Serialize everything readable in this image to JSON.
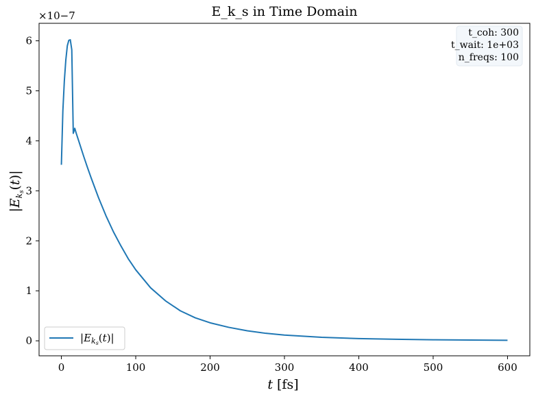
{
  "chart_data": {
    "type": "line",
    "title": "E_k_s in Time Domain",
    "xlabel": "t [fs]",
    "ylabel": "|E_{k_s}(t)|",
    "y_offset_label": "×10−7",
    "xlim": [
      -30,
      630
    ],
    "ylim": [
      -0.3,
      6.35
    ],
    "x_ticks": [
      0,
      100,
      200,
      300,
      400,
      500,
      600
    ],
    "y_ticks": [
      0,
      1,
      2,
      3,
      4,
      5,
      6
    ],
    "grid": false,
    "legend_position": "lower-left",
    "info_box": [
      "t_coh: 300",
      "t_wait: 1e+03",
      "n_freqs: 100"
    ],
    "series": [
      {
        "name": "|E_{k_s}(t)|",
        "color": "#1f77b4",
        "x": [
          0,
          2,
          4,
          6,
          8,
          10,
          12,
          14,
          16,
          18,
          20,
          25,
          30,
          35,
          40,
          50,
          60,
          70,
          80,
          90,
          100,
          120,
          140,
          160,
          180,
          200,
          225,
          250,
          275,
          300,
          350,
          400,
          450,
          500,
          550,
          600
        ],
        "y": [
          3.52,
          4.6,
          5.2,
          5.62,
          5.9,
          6.01,
          6.02,
          5.82,
          4.15,
          4.25,
          4.15,
          3.92,
          3.69,
          3.47,
          3.26,
          2.86,
          2.5,
          2.18,
          1.9,
          1.64,
          1.42,
          1.06,
          0.8,
          0.6,
          0.46,
          0.36,
          0.27,
          0.2,
          0.15,
          0.115,
          0.07,
          0.045,
          0.03,
          0.02,
          0.015,
          0.01
        ]
      }
    ]
  }
}
